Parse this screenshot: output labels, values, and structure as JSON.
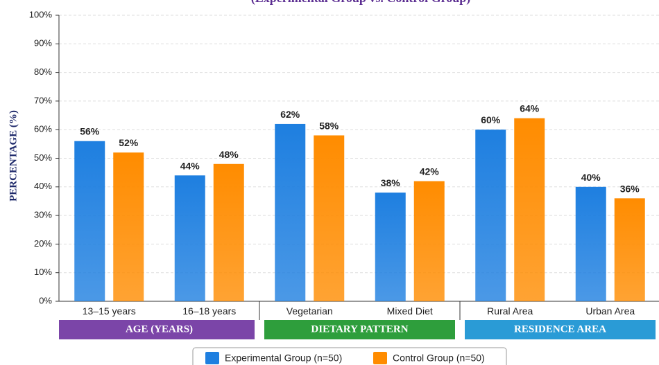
{
  "chart_data": {
    "type": "bar",
    "subtitle": "(Experimental Group vs. Control Group)",
    "y_label": "PERCENTAGE (%)",
    "categories": [
      "13–15 years",
      "16–18 years",
      "Vegetarian",
      "Mixed Diet",
      "Rural Area",
      "Urban Area"
    ],
    "groups": [
      {
        "label": "AGE (YEARS)",
        "color": "#7b45a8"
      },
      {
        "label": "DIETARY PATTERN",
        "color": "#2e9e3c"
      },
      {
        "label": "RESIDENCE AREA",
        "color": "#2a9bd6"
      }
    ],
    "series": [
      {
        "name": "Experimental Group (n=50)",
        "color": "#1e7fe0",
        "values": [
          56,
          44,
          62,
          38,
          60,
          40
        ],
        "value_labels": [
          "56%",
          "44%",
          "62%",
          "38%",
          "60%",
          "40%"
        ]
      },
      {
        "name": "Control Group (n=50)",
        "color": "#ff8c00",
        "values": [
          52,
          48,
          58,
          42,
          64,
          36
        ],
        "value_labels": [
          "52%",
          "48%",
          "58%",
          "42%",
          "64%",
          "36%"
        ]
      }
    ],
    "ylim": [
      0,
      100
    ],
    "yticks": [
      {
        "value": 0,
        "label": "0%"
      },
      {
        "value": 10,
        "label": "10%"
      },
      {
        "value": 20,
        "label": "20%"
      },
      {
        "value": 30,
        "label": "30%"
      },
      {
        "value": 40,
        "label": "40%"
      },
      {
        "value": 50,
        "label": "50%"
      },
      {
        "value": 60,
        "label": "60%"
      },
      {
        "value": 70,
        "label": "70%"
      },
      {
        "value": 80,
        "label": "80%"
      },
      {
        "value": 90,
        "label": "90%"
      },
      {
        "value": 100,
        "label": "100%"
      }
    ],
    "grid": true
  }
}
